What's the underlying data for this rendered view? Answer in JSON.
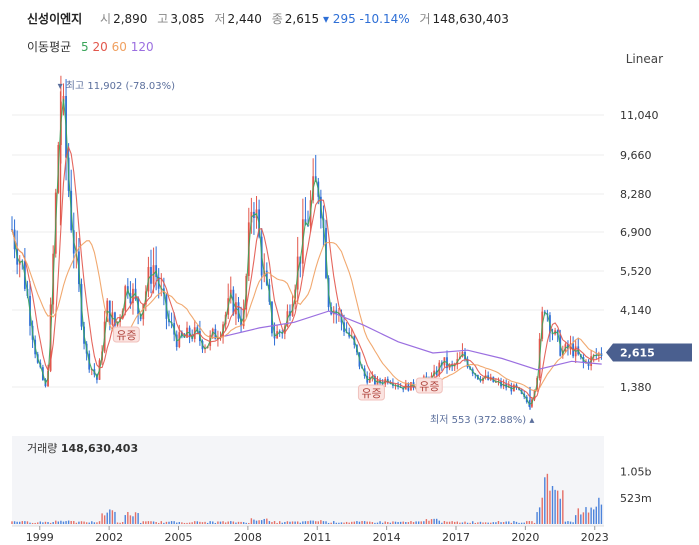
{
  "header": {
    "name": "신성이엔지",
    "open_label": "시",
    "open": "2,890",
    "high_label": "고",
    "high": "3,085",
    "low_label": "저",
    "low": "2,440",
    "close_label": "종",
    "close": "2,615",
    "change": "▾ 295 -10.14%",
    "volume_label": "거",
    "volume": "148,630,403"
  },
  "ma_legend": {
    "title": "이동평균",
    "items": [
      {
        "label": "5",
        "color": "#3aa55a"
      },
      {
        "label": "20",
        "color": "#e2574c"
      },
      {
        "label": "60",
        "color": "#f0a060"
      },
      {
        "label": "120",
        "color": "#9b6fe0"
      }
    ]
  },
  "scale_toggle": "Linear",
  "volume_title": "거래량",
  "volume_value": "148,630,403",
  "colors": {
    "up": "#e2574c",
    "down": "#2e6fd6",
    "current_badge": "#4a5f8f"
  },
  "chart_data": [
    {
      "type": "line",
      "subtype": "candlestick",
      "x": [
        1997.8,
        1998.3,
        1998.9,
        1999.3,
        1999.5,
        1999.9,
        2000.4,
        2001.0,
        2001.5,
        2001.9,
        2002.3,
        2002.8,
        2003.3,
        2003.9,
        2004.5,
        2005.0,
        2005.6,
        2006.2,
        2006.8,
        2007.3,
        2007.8,
        2008.2,
        2008.6,
        2009.1,
        2009.6,
        2010.2,
        2010.7,
        2011.1,
        2011.5,
        2012.0,
        2012.5,
        2013.0,
        2013.6,
        2014.1,
        2014.6,
        2015.1,
        2015.6,
        2016.0,
        2016.4,
        2016.8,
        2017.3,
        2017.9,
        2018.5,
        2019.1,
        2019.6,
        2020.2,
        2020.5,
        2020.8,
        2021.2,
        2021.6,
        2022.0,
        2022.5,
        2022.9,
        2023.3
      ],
      "y": [
        7000,
        5500,
        2200,
        1200,
        4500,
        11902,
        7000,
        2500,
        1600,
        4200,
        3500,
        5200,
        4000,
        5800,
        3800,
        3000,
        3300,
        2900,
        3500,
        4500,
        3700,
        8500,
        5800,
        3200,
        3500,
        6000,
        7800,
        8800,
        4500,
        3800,
        3000,
        1800,
        1500,
        1700,
        1400,
        1400,
        1600,
        1700,
        2300,
        2000,
        2500,
        1800,
        1600,
        1400,
        1300,
        700,
        1800,
        4500,
        3300,
        2600,
        2800,
        2200,
        2400,
        2615
      ],
      "series": [
        {
          "name": "5",
          "color": "#3aa55a"
        },
        {
          "name": "20",
          "color": "#e2574c"
        },
        {
          "name": "60",
          "color": "#f0a060"
        },
        {
          "name": "120",
          "color": "#9b6fe0",
          "x": [
            2007.0,
            2008.5,
            2010.0,
            2011.5,
            2013.0,
            2014.5,
            2016.0,
            2017.5,
            2019.0,
            2020.5,
            2022.0,
            2023.3
          ],
          "values": [
            3200,
            3500,
            3700,
            4100,
            3600,
            3000,
            2600,
            2700,
            2400,
            2000,
            2300,
            2200
          ]
        }
      ],
      "xlabel": "",
      "ylabel": "",
      "x_ticks": [
        "1999",
        "2002",
        "2005",
        "2008",
        "2011",
        "2014",
        "2017",
        "2020",
        "2023"
      ],
      "y_ticks": [
        "11,040",
        "9,660",
        "8,280",
        "6,900",
        "5,520",
        "4,140",
        "1,380"
      ],
      "ylim": [
        300,
        13000
      ],
      "scale": "linear",
      "annotations": {
        "high": "최고 11,902 (-78.03%)",
        "low": "최저 553 (372.88%)",
        "current": "2,615",
        "dividend_marks": [
          "유증",
          "유증",
          "유증"
        ]
      },
      "grid": true
    },
    {
      "type": "bar",
      "title": "거래량 148,630,403",
      "x": [
        1998.0,
        2000.0,
        2002.0,
        2003.0,
        2008.5,
        2011.0,
        2016.0,
        2019.0,
        2020.8,
        2021.0,
        2021.3,
        2022.5,
        2023.3
      ],
      "values": [
        60,
        80,
        300,
        250,
        120,
        90,
        120,
        60,
        400,
        1050,
        800,
        350,
        550
      ],
      "y_ticks": [
        "1.05b",
        "523m"
      ],
      "ylim": [
        0,
        1200
      ]
    }
  ]
}
